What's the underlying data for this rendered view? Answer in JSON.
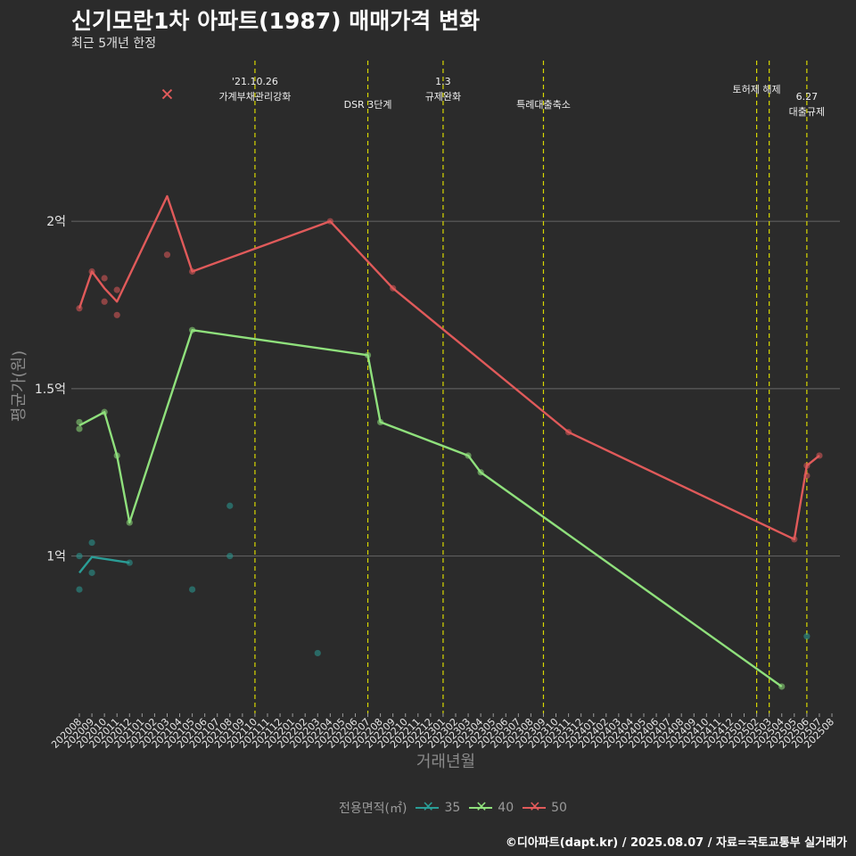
{
  "title": "신기모란1차 아파트(1987) 매매가격 변화",
  "subtitle": "최근 5개년 한정",
  "caption": "©디아파트(dapt.kr) / 2025.08.07 / 자료=국토교통부 실거래가",
  "chart_data": {
    "type": "line",
    "xlabel": "거래년월",
    "ylabel": "평균가(원)",
    "categories": [
      "202008",
      "202009",
      "202010",
      "202011",
      "202012",
      "202101",
      "202102",
      "202103",
      "202104",
      "202105",
      "202106",
      "202107",
      "202108",
      "202109",
      "202110",
      "202111",
      "202112",
      "202201",
      "202202",
      "202203",
      "202204",
      "202205",
      "202206",
      "202207",
      "202208",
      "202209",
      "202210",
      "202211",
      "202212",
      "202301",
      "202302",
      "202303",
      "202304",
      "202305",
      "202306",
      "202307",
      "202308",
      "202309",
      "202310",
      "202311",
      "202312",
      "202401",
      "202402",
      "202403",
      "202404",
      "202405",
      "202406",
      "202407",
      "202408",
      "202409",
      "202410",
      "202411",
      "202412",
      "202501",
      "202502",
      "202503",
      "202504",
      "202505",
      "202506",
      "202507",
      "202508"
    ],
    "y_ticks": [
      {
        "value": 100000000,
        "label": "1억"
      },
      {
        "value": 150000000,
        "label": "1.5억"
      },
      {
        "value": 200000000,
        "label": "2억"
      }
    ],
    "ylim": [
      53000000,
      248000000
    ],
    "grid": "horizontal",
    "legend": {
      "title": "전용면적(㎡)",
      "position": "bottom"
    },
    "series": [
      {
        "name": "35",
        "color": "#2a9d96",
        "line": [
          [
            "202008",
            95000000
          ],
          [
            "202009",
            99700000
          ],
          [
            "202012",
            98000000
          ]
        ],
        "points": [
          [
            "202008",
            100000000
          ],
          [
            "202008",
            90000000
          ],
          [
            "202009",
            104000000
          ],
          [
            "202009",
            95000000
          ],
          [
            "202012",
            98000000
          ],
          [
            "202105",
            90000000
          ],
          [
            "202108",
            115000000
          ],
          [
            "202108",
            100000000
          ],
          [
            "202203",
            71000000
          ],
          [
            "202506",
            76000000
          ]
        ]
      },
      {
        "name": "40",
        "color": "#8fe07c",
        "line": [
          [
            "202008",
            139000000
          ],
          [
            "202010",
            143000000
          ],
          [
            "202011",
            130000000
          ],
          [
            "202012",
            110000000
          ],
          [
            "202105",
            167500000
          ],
          [
            "202207",
            160000000
          ],
          [
            "202208",
            140000000
          ],
          [
            "202303",
            130000000
          ],
          [
            "202304",
            125000000
          ],
          [
            "202504",
            61000000
          ]
        ],
        "points": [
          [
            "202008",
            140000000
          ],
          [
            "202008",
            138000000
          ],
          [
            "202010",
            143000000
          ],
          [
            "202011",
            130000000
          ],
          [
            "202012",
            110000000
          ],
          [
            "202105",
            167500000
          ],
          [
            "202207",
            160000000
          ],
          [
            "202208",
            140000000
          ],
          [
            "202303",
            130000000
          ],
          [
            "202304",
            125000000
          ],
          [
            "202504",
            61000000
          ]
        ]
      },
      {
        "name": "50",
        "color": "#e05a5a",
        "line": [
          [
            "202008",
            174000000
          ],
          [
            "202009",
            185000000
          ],
          [
            "202010",
            180000000
          ],
          [
            "202011",
            176000000
          ],
          [
            "202103",
            207500000
          ],
          [
            "202105",
            185000000
          ],
          [
            "202204",
            200000000
          ],
          [
            "202209",
            180000000
          ],
          [
            "202311",
            137000000
          ],
          [
            "202505",
            105000000
          ],
          [
            "202506",
            127000000
          ],
          [
            "202507",
            130000000
          ]
        ],
        "points": [
          [
            "202008",
            174000000
          ],
          [
            "202009",
            185000000
          ],
          [
            "202010",
            183000000
          ],
          [
            "202010",
            176000000
          ],
          [
            "202011",
            179500000
          ],
          [
            "202011",
            172000000
          ],
          [
            "202103",
            190000000
          ],
          [
            "202105",
            185000000
          ],
          [
            "202204",
            200000000
          ],
          [
            "202209",
            180000000
          ],
          [
            "202311",
            137000000
          ],
          [
            "202505",
            105000000
          ],
          [
            "202506",
            127000000
          ],
          [
            "202506",
            124000000
          ],
          [
            "202507",
            130000000
          ]
        ],
        "outliers": [
          [
            "202103",
            238000000
          ]
        ]
      }
    ],
    "events": [
      {
        "x": "202110",
        "lines": [
          "'21.10.26",
          "가계부채관리강화"
        ],
        "row": 0
      },
      {
        "x": "202207",
        "lines": [
          "DSR 3단계"
        ],
        "row": 1
      },
      {
        "x": "202301",
        "lines": [
          "1.3",
          "규제완화"
        ],
        "row": 0
      },
      {
        "x": "202309",
        "lines": [
          "특례대출축소"
        ],
        "row": 1
      },
      {
        "x": "202502",
        "lines": [
          "토허제 해제"
        ],
        "row": 0
      },
      {
        "x": "202503",
        "lines": [],
        "row": 0
      },
      {
        "x": "202506",
        "lines": [
          "6.27",
          "대출규제"
        ],
        "row": 1
      }
    ]
  }
}
